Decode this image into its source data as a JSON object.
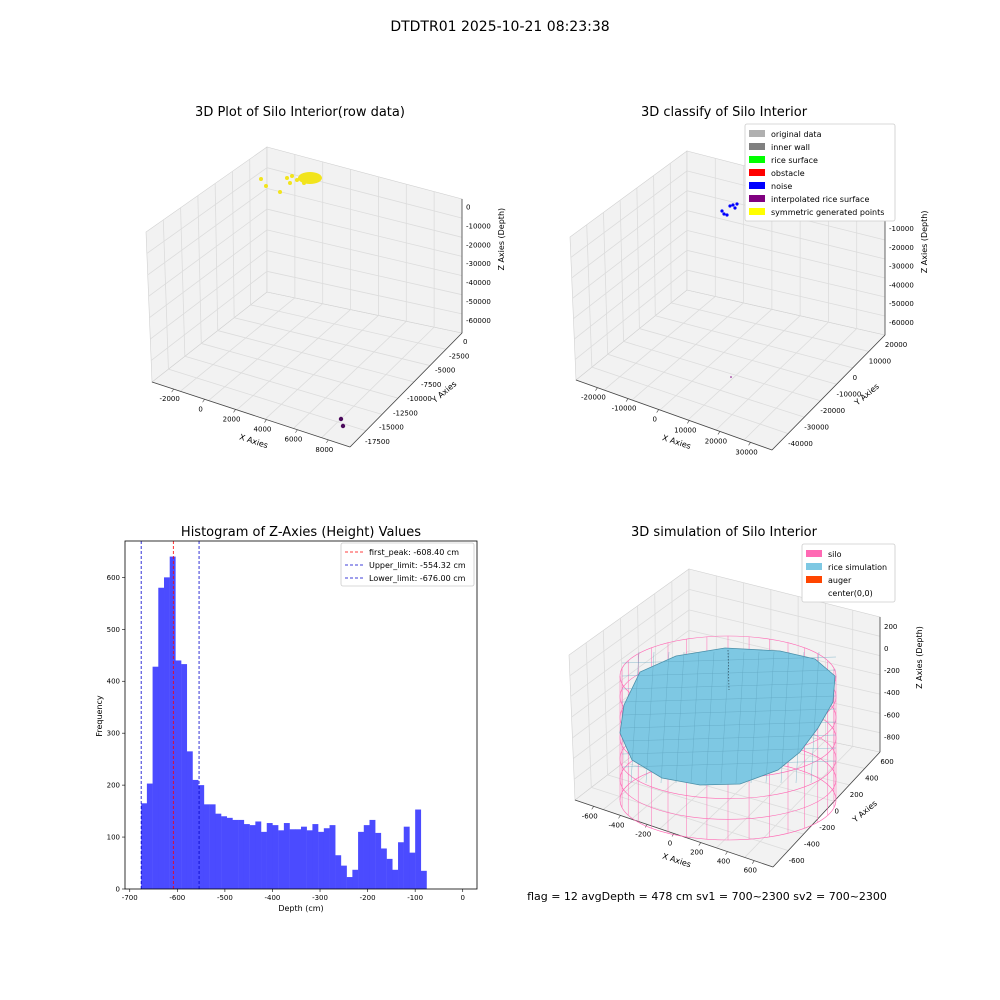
{
  "figure_title": "DTDTR01 2025-10-21 08:23:38",
  "footer": "flag = 12   avgDepth = 478 cm  sv1 = 700~2300  sv2 = 700~2300",
  "colors": {
    "raw_points": "#f2e41c",
    "dark_points": "#4b0a5c",
    "hist_bar": "#4b4bff",
    "peak_line": "#ff0000",
    "limit_line": "#0000cc",
    "silo": "#ff69b4",
    "rice": "#7ec8e3",
    "auger": "#ff4500"
  },
  "chart_data": [
    {
      "type": "scatter",
      "title": "3D Plot of Silo Interior(row data)",
      "xlabel": "X Axies",
      "ylabel": "Y Axies",
      "zlabel": "Z Axies (Depth)",
      "x_ticks": [
        "-2000",
        "0",
        "2000",
        "4000",
        "6000",
        "8000"
      ],
      "y_ticks": [
        "0",
        "-2500",
        "-5000",
        "-7500",
        "-10000",
        "-12500",
        "-15000",
        "-17500"
      ],
      "z_ticks": [
        "0",
        "-10000",
        "-20000",
        "-30000",
        "-40000",
        "-50000",
        "-60000"
      ],
      "point_groups": [
        {
          "color": "#f2e41c",
          "description": "dense cluster near top surface"
        },
        {
          "color": "#4b0a5c",
          "description": "two outlier points at far corner"
        }
      ]
    },
    {
      "type": "scatter",
      "title": "3D classify of Silo Interior",
      "xlabel": "X Axies",
      "ylabel": "Y Axies",
      "zlabel": "Z Axies (Depth)",
      "x_ticks": [
        "-20000",
        "-10000",
        "0",
        "10000",
        "20000",
        "30000"
      ],
      "y_ticks": [
        "20000",
        "10000",
        "0",
        "-10000",
        "-20000",
        "-30000",
        "-40000"
      ],
      "z_ticks": [
        "0",
        "-10000",
        "-20000",
        "-30000",
        "-40000",
        "-50000",
        "-60000"
      ],
      "legend": [
        {
          "label": "original data",
          "color": "#b0b0b0"
        },
        {
          "label": "inner wall",
          "color": "#808080"
        },
        {
          "label": "rice surface",
          "color": "#00ff00"
        },
        {
          "label": "obstacle",
          "color": "#ff0000"
        },
        {
          "label": "noise",
          "color": "#0000ff"
        },
        {
          "label": "interpolated rice surface",
          "color": "#800080"
        },
        {
          "label": "symmetric generated points",
          "color": "#ffff00"
        }
      ]
    },
    {
      "type": "bar",
      "title": "Histogram of Z-Axies (Height) Values",
      "xlabel": "Depth (cm)",
      "ylabel": "Frequency",
      "xlim": [
        -710,
        30
      ],
      "ylim": [
        0,
        670
      ],
      "x_ticks": [
        -700,
        -600,
        -500,
        -400,
        -300,
        -200,
        -100,
        0
      ],
      "y_ticks": [
        0,
        100,
        200,
        300,
        400,
        500,
        600
      ],
      "bin_start": -676,
      "bin_width": 12,
      "values": [
        165,
        203,
        428,
        580,
        600,
        640,
        440,
        433,
        265,
        210,
        200,
        163,
        163,
        145,
        140,
        137,
        133,
        133,
        125,
        123,
        130,
        110,
        127,
        123,
        113,
        127,
        115,
        115,
        120,
        113,
        125,
        110,
        117,
        123,
        65,
        45,
        23,
        37,
        110,
        123,
        133,
        108,
        78,
        58,
        37,
        90,
        120,
        70,
        153,
        35
      ],
      "vlines": [
        {
          "x": -608.4,
          "label": "first_peak: -608.40 cm",
          "color": "#ff0000"
        },
        {
          "x": -554.32,
          "label": "Upper_limit: -554.32 cm",
          "color": "#0000cc"
        },
        {
          "x": -676.0,
          "label": "Lower_limit: -676.00 cm",
          "color": "#0000cc"
        }
      ]
    },
    {
      "type": "scatter",
      "title": "3D simulation of Silo Interior",
      "xlabel": "X Axies",
      "ylabel": "Y Axies",
      "zlabel": "Z Axies (Depth)",
      "x_ticks": [
        "-600",
        "-400",
        "-200",
        "0",
        "200",
        "400",
        "600"
      ],
      "y_ticks": [
        "600",
        "400",
        "200",
        "0",
        "-200",
        "-400",
        "-600"
      ],
      "z_ticks": [
        "200",
        "0",
        "-200",
        "-400",
        "-600",
        "-800"
      ],
      "legend": [
        {
          "label": "silo",
          "color": "#ff69b4"
        },
        {
          "label": "rice simulation",
          "color": "#7ec8e3"
        },
        {
          "label": "auger",
          "color": "#ff4500"
        },
        {
          "label": "center(0,0)",
          "color": ""
        }
      ]
    }
  ]
}
